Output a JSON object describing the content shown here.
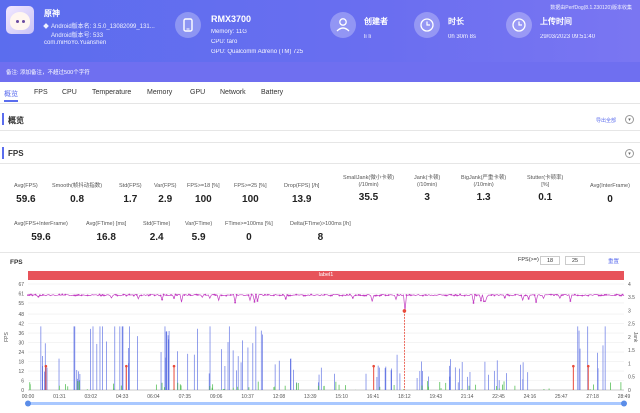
{
  "header": {
    "app_name": "原神",
    "app_version": "Android版本名: 3.5.0_13082099_131...",
    "app_version_code": "Android版本号: 533",
    "app_package": "com.miHoYo.Yuanshen",
    "device_name": "RMX3700",
    "device_memory": "Memory: 11G",
    "device_cpu": "CPU: taro",
    "device_gpu": "GPU: Qualcomm Adreno (TM) 725",
    "creator_label": "创建者",
    "creator_value": "li li",
    "duration_label": "时长",
    "duration_value": "0h 30m 8s",
    "upload_label": "上传时间",
    "upload_value": "29/03/2023 09:51:40",
    "top_note": "数据由PerfDog(8.1.230120)版本收集",
    "icons": [
      "app-avatar-icon",
      "phone-icon",
      "user-icon",
      "clock-icon",
      "clock-upload-icon"
    ]
  },
  "note_bar": {
    "text": "备注: 添加备注，不超过500个字符"
  },
  "tabs": [
    {
      "label": "概览"
    },
    {
      "label": "FPS"
    },
    {
      "label": "CPU"
    },
    {
      "label": "Temperature"
    },
    {
      "label": "Memory"
    },
    {
      "label": "GPU"
    },
    {
      "label": "Network"
    },
    {
      "label": "Battery"
    }
  ],
  "overview": {
    "title": "概览",
    "link": "导出全部"
  },
  "fps_section": {
    "title": "FPS",
    "stats_row1": [
      {
        "label": "Avg(FPS)",
        "value": "59.6"
      },
      {
        "label": "Smooth(帧抖动指数)",
        "value": "0.8"
      },
      {
        "label": "Std(FPS)",
        "value": "1.7"
      },
      {
        "label": "Var(FPS)",
        "value": "2.9"
      },
      {
        "label": "FPS>=18 [%]",
        "value": "100"
      },
      {
        "label": "FPS>=25 [%]",
        "value": "100"
      },
      {
        "label": "Drop(FPS) [/h]",
        "value": "13.9"
      },
      {
        "label": "SmallJank(微小卡顿)\n(/10min)",
        "value": "35.5"
      },
      {
        "label": "Jank(卡顿)\n(/10min)",
        "value": "3"
      },
      {
        "label": "BigJank(严重卡顿)\n(/10min)",
        "value": "1.3"
      },
      {
        "label": "Stutter(卡顿率)\n[%]",
        "value": "0.1"
      },
      {
        "label": "Avg(InterFrame)",
        "value": "0"
      }
    ],
    "stats_row2": [
      {
        "label": "Avg(FPS+InterFrame)",
        "value": "59.6"
      },
      {
        "label": "Avg(FTime) [ms]",
        "value": "16.8"
      },
      {
        "label": "Std(FTime)",
        "value": "2.4"
      },
      {
        "label": "Var(FTime)",
        "value": "5.9"
      },
      {
        "label": "FTime>=100ms [%]",
        "value": "0"
      },
      {
        "label": "Delta(FTime)>100ms [/h]",
        "value": "8"
      }
    ]
  },
  "chart_panel": {
    "title": "FPS",
    "fps_filter_label": "FPS(>=)",
    "fps_filter_1": "18",
    "fps_filter_2": "25",
    "reset_label": "重置",
    "label_bar": "label1",
    "y_left_label": "FPS",
    "y_right_label": "Jank"
  },
  "chart_data": {
    "type": "line",
    "title": "FPS",
    "x_ticks": [
      "00:00",
      "01:31",
      "03:02",
      "04:33",
      "06:04",
      "07:35",
      "09:06",
      "10:37",
      "12:08",
      "13:39",
      "15:10",
      "16:41",
      "18:12",
      "19:43",
      "21:14",
      "22:45",
      "24:16",
      "25:47",
      "27:18",
      "28:49"
    ],
    "y_left_ticks": [
      0,
      6,
      12,
      18,
      24,
      30,
      36,
      42,
      48,
      55,
      61,
      67
    ],
    "y_right_ticks": [
      0,
      0.5,
      1,
      1.5,
      2,
      2.5,
      3,
      3.5,
      4
    ],
    "ylim_left": [
      0,
      67
    ],
    "ylim_right": [
      0,
      4
    ],
    "fps_baseline": 60,
    "fps_dip": {
      "time": "18:12",
      "value": 50
    },
    "series": [
      {
        "name": "FPS",
        "color": "#c23ec2"
      },
      {
        "name": "Jank",
        "color": "#4a5fe0"
      },
      {
        "name": "BigJank",
        "color": "#e84a3a"
      },
      {
        "name": "Stutter",
        "color": "#5ac05a"
      }
    ],
    "legend": "none"
  },
  "colors": {
    "accent": "#5b6dee",
    "label_bar": "#e7535a",
    "fps_line": "#c23ec2"
  }
}
